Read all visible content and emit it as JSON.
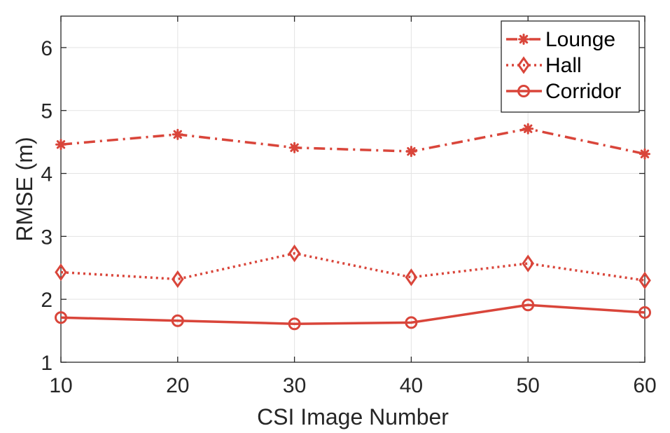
{
  "chart_data": {
    "type": "line",
    "title": "",
    "xlabel": "CSI Image Number",
    "ylabel": "RMSE (m)",
    "x": [
      10,
      20,
      30,
      40,
      50,
      60
    ],
    "xlim": [
      10,
      60
    ],
    "ylim": [
      1,
      6.5
    ],
    "xticks": [
      "10",
      "20",
      "30",
      "40",
      "50",
      "60"
    ],
    "yticks": [
      "1",
      "2",
      "3",
      "4",
      "5",
      "6"
    ],
    "grid": true,
    "legend_position": "top-right",
    "color": "#d9453a",
    "series": [
      {
        "name": "Lounge",
        "values": [
          4.46,
          4.62,
          4.41,
          4.35,
          4.71,
          4.31
        ],
        "line_style": "dash-dot",
        "marker": "asterisk"
      },
      {
        "name": "Hall",
        "values": [
          2.43,
          2.32,
          2.73,
          2.35,
          2.57,
          2.3
        ],
        "line_style": "dotted",
        "marker": "diamond"
      },
      {
        "name": "Corridor",
        "values": [
          1.71,
          1.66,
          1.61,
          1.63,
          1.91,
          1.79
        ],
        "line_style": "solid",
        "marker": "circle"
      }
    ]
  }
}
